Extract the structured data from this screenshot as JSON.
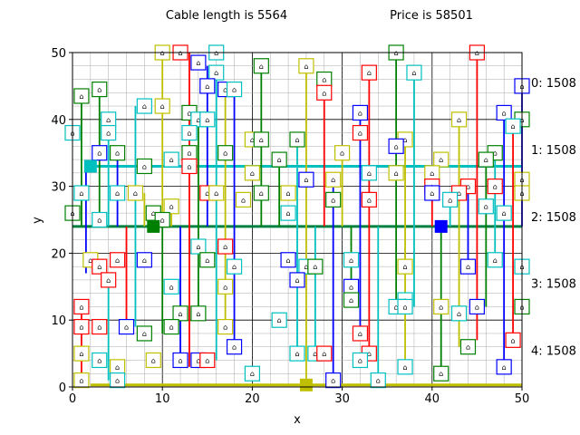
{
  "header": {
    "cable_text": "Cable length is 5564",
    "price_text": "Price is 58501"
  },
  "chart_data": {
    "type": "scatter",
    "xlabel": "x",
    "ylabel": "y",
    "xlim": [
      0,
      50
    ],
    "ylim": [
      0,
      50
    ],
    "x_ticks": [
      0,
      10,
      20,
      30,
      40,
      50
    ],
    "y_ticks": [
      0,
      10,
      20,
      30,
      40,
      50
    ],
    "grid": "major and minor",
    "house_glyph": "⌂",
    "side_labels": [
      {
        "text": "0: 1508",
        "y": 45.5
      },
      {
        "text": "1: 1508",
        "y": 35.5
      },
      {
        "text": "2: 1508",
        "y": 25.5
      },
      {
        "text": "3: 1508",
        "y": 15.5
      },
      {
        "text": "4: 1508",
        "y": 5.5
      }
    ],
    "colors": {
      "red": "#ff0000",
      "green": "#008000",
      "blue": "#0000ff",
      "cyan": "#00bfbf",
      "olive": "#bfbf00",
      "trunk": "#008040",
      "square_green": "#008000",
      "square_blue": "#0000ff",
      "square_cyan": "#00bfbf",
      "square_olive": "#bfbf00"
    },
    "trunks": [
      {
        "color": "cyan",
        "y": 33,
        "x1": 2,
        "x2": 50
      },
      {
        "color": "trunk",
        "y": 24,
        "x1": 0,
        "x2": 50
      },
      {
        "color": "olive",
        "y": 0.3,
        "x1": 2,
        "x2": 50
      }
    ],
    "feeders": [
      {
        "x": 1,
        "y1": 24,
        "y2": 43.5,
        "color": "green"
      },
      {
        "x": 1,
        "y1": 0,
        "y2": 12,
        "color": "red"
      },
      {
        "x": 1.5,
        "y1": 17,
        "y2": 33,
        "color": "blue"
      },
      {
        "x": 3,
        "y1": 24,
        "y2": 45,
        "color": "green"
      },
      {
        "x": 4,
        "y1": 24,
        "y2": 40,
        "color": "cyan"
      },
      {
        "x": 4,
        "y1": 1,
        "y2": 16,
        "color": "cyan"
      },
      {
        "x": 5,
        "y1": 24,
        "y2": 35,
        "color": "blue"
      },
      {
        "x": 6,
        "y1": 8,
        "y2": 24,
        "color": "red"
      },
      {
        "x": 7,
        "y1": 9,
        "y2": 42,
        "color": "cyan"
      },
      {
        "x": 8,
        "y1": 24,
        "y2": 29,
        "color": "olive"
      },
      {
        "x": 10,
        "y1": 24,
        "y2": 50,
        "color": "olive"
      },
      {
        "x": 10,
        "y1": 8,
        "y2": 24,
        "color": "green"
      },
      {
        "x": 11,
        "y1": 24,
        "y2": 27,
        "color": "olive"
      },
      {
        "x": 12,
        "y1": 4,
        "y2": 24,
        "color": "blue"
      },
      {
        "x": 13,
        "y1": 3,
        "y2": 50,
        "color": "red"
      },
      {
        "x": 14,
        "y1": 11,
        "y2": 41,
        "color": "green"
      },
      {
        "x": 15,
        "y1": 24,
        "y2": 48,
        "color": "blue"
      },
      {
        "x": 16,
        "y1": 4,
        "y2": 47,
        "color": "cyan"
      },
      {
        "x": 17,
        "y1": 9,
        "y2": 45,
        "color": "olive"
      },
      {
        "x": 18,
        "y1": 6,
        "y2": 44,
        "color": "blue"
      },
      {
        "x": 21,
        "y1": 24,
        "y2": 48,
        "color": "green"
      },
      {
        "x": 23,
        "y1": 24,
        "y2": 34,
        "color": "green"
      },
      {
        "x": 25,
        "y1": 5,
        "y2": 37,
        "color": "cyan"
      },
      {
        "x": 26,
        "y1": 0,
        "y2": 48,
        "color": "olive"
      },
      {
        "x": 27,
        "y1": 5,
        "y2": 24,
        "color": "cyan"
      },
      {
        "x": 28,
        "y1": 24,
        "y2": 44,
        "color": "red"
      },
      {
        "x": 29,
        "y1": 1,
        "y2": 30,
        "color": "blue"
      },
      {
        "x": 30,
        "y1": 24,
        "y2": 35,
        "color": "olive"
      },
      {
        "x": 31,
        "y1": 13,
        "y2": 24,
        "color": "green"
      },
      {
        "x": 32,
        "y1": 8,
        "y2": 41,
        "color": "blue"
      },
      {
        "x": 33,
        "y1": 4,
        "y2": 47,
        "color": "red"
      },
      {
        "x": 34,
        "y1": 1,
        "y2": 24,
        "color": "cyan"
      },
      {
        "x": 36,
        "y1": 12,
        "y2": 50,
        "color": "green"
      },
      {
        "x": 37,
        "y1": 3,
        "y2": 37,
        "color": "olive"
      },
      {
        "x": 38,
        "y1": 12,
        "y2": 47,
        "color": "cyan"
      },
      {
        "x": 40,
        "y1": 24,
        "y2": 30,
        "color": "red"
      },
      {
        "x": 41,
        "y1": 2,
        "y2": 24,
        "color": "green"
      },
      {
        "x": 42,
        "y1": 24,
        "y2": 28,
        "color": "cyan"
      },
      {
        "x": 43,
        "y1": 6,
        "y2": 40,
        "color": "olive"
      },
      {
        "x": 44,
        "y1": 18,
        "y2": 30,
        "color": "blue"
      },
      {
        "x": 45,
        "y1": 7,
        "y2": 50,
        "color": "red"
      },
      {
        "x": 46,
        "y1": 12,
        "y2": 34,
        "color": "green"
      },
      {
        "x": 47,
        "y1": 19,
        "y2": 35,
        "color": "cyan"
      },
      {
        "x": 48,
        "y1": 3,
        "y2": 41,
        "color": "blue"
      },
      {
        "x": 49,
        "y1": 7,
        "y2": 39,
        "color": "red"
      },
      {
        "x": 50,
        "y1": 24,
        "y2": 45,
        "color": "blue"
      }
    ],
    "substations": [
      {
        "x": 2,
        "y": 33,
        "color": "square_cyan"
      },
      {
        "x": 9,
        "y": 24,
        "color": "square_green"
      },
      {
        "x": 41,
        "y": 24,
        "color": "square_blue"
      },
      {
        "x": 26,
        "y": 0.3,
        "color": "square_olive"
      }
    ],
    "houses": [
      {
        "x": 10,
        "y": 50,
        "color": "olive"
      },
      {
        "x": 12,
        "y": 50,
        "color": "red"
      },
      {
        "x": 16,
        "y": 50,
        "color": "cyan"
      },
      {
        "x": 36,
        "y": 50,
        "color": "green"
      },
      {
        "x": 45,
        "y": 50,
        "color": "red"
      },
      {
        "x": 14,
        "y": 48.5,
        "color": "blue"
      },
      {
        "x": 21,
        "y": 48,
        "color": "green"
      },
      {
        "x": 26,
        "y": 48,
        "color": "olive"
      },
      {
        "x": 16,
        "y": 47,
        "color": "cyan"
      },
      {
        "x": 33,
        "y": 47,
        "color": "red"
      },
      {
        "x": 38,
        "y": 47,
        "color": "cyan"
      },
      {
        "x": 15,
        "y": 45,
        "color": "blue"
      },
      {
        "x": 28,
        "y": 46,
        "color": "green"
      },
      {
        "x": 50,
        "y": 45,
        "color": "blue"
      },
      {
        "x": 3,
        "y": 44.5,
        "color": "green"
      },
      {
        "x": 17,
        "y": 44.5,
        "color": "blue"
      },
      {
        "x": 18,
        "y": 44.5,
        "color": "cyan"
      },
      {
        "x": 28,
        "y": 44,
        "color": "red"
      },
      {
        "x": 1,
        "y": 43.5,
        "color": "green"
      },
      {
        "x": 8,
        "y": 42,
        "color": "cyan"
      },
      {
        "x": 10,
        "y": 42,
        "color": "olive"
      },
      {
        "x": 13,
        "y": 41,
        "color": "green"
      },
      {
        "x": 32,
        "y": 41,
        "color": "blue"
      },
      {
        "x": 48,
        "y": 41,
        "color": "blue"
      },
      {
        "x": 4,
        "y": 40,
        "color": "cyan"
      },
      {
        "x": 14,
        "y": 40,
        "color": "cyan"
      },
      {
        "x": 15,
        "y": 40,
        "color": "cyan"
      },
      {
        "x": 43,
        "y": 40,
        "color": "olive"
      },
      {
        "x": 50,
        "y": 40,
        "color": "green"
      },
      {
        "x": 49,
        "y": 39,
        "color": "cyan"
      },
      {
        "x": 0,
        "y": 38,
        "color": "cyan"
      },
      {
        "x": 4,
        "y": 38,
        "color": "cyan"
      },
      {
        "x": 13,
        "y": 38,
        "color": "cyan"
      },
      {
        "x": 32,
        "y": 38,
        "color": "red"
      },
      {
        "x": 20,
        "y": 37,
        "color": "olive"
      },
      {
        "x": 21,
        "y": 37,
        "color": "green"
      },
      {
        "x": 25,
        "y": 37,
        "color": "green"
      },
      {
        "x": 37,
        "y": 37,
        "color": "olive"
      },
      {
        "x": 36,
        "y": 36,
        "color": "blue"
      },
      {
        "x": 3,
        "y": 35,
        "color": "blue"
      },
      {
        "x": 5,
        "y": 35,
        "color": "green"
      },
      {
        "x": 13,
        "y": 35,
        "color": "green"
      },
      {
        "x": 17,
        "y": 35,
        "color": "green"
      },
      {
        "x": 30,
        "y": 35,
        "color": "olive"
      },
      {
        "x": 47,
        "y": 35,
        "color": "green"
      },
      {
        "x": 11,
        "y": 34,
        "color": "cyan"
      },
      {
        "x": 23,
        "y": 34,
        "color": "green"
      },
      {
        "x": 41,
        "y": 34,
        "color": "olive"
      },
      {
        "x": 46,
        "y": 34,
        "color": "green"
      },
      {
        "x": 8,
        "y": 33,
        "color": "green"
      },
      {
        "x": 13,
        "y": 33,
        "color": "red"
      },
      {
        "x": 20,
        "y": 32,
        "color": "olive"
      },
      {
        "x": 33,
        "y": 32,
        "color": "cyan"
      },
      {
        "x": 36,
        "y": 32,
        "color": "olive"
      },
      {
        "x": 40,
        "y": 32,
        "color": "olive"
      },
      {
        "x": 26,
        "y": 31,
        "color": "blue"
      },
      {
        "x": 29,
        "y": 31,
        "color": "olive"
      },
      {
        "x": 50,
        "y": 31,
        "color": "olive"
      },
      {
        "x": 40,
        "y": 30,
        "color": "red"
      },
      {
        "x": 44,
        "y": 30,
        "color": "red"
      },
      {
        "x": 47,
        "y": 30,
        "color": "red"
      },
      {
        "x": 1,
        "y": 29,
        "color": "cyan"
      },
      {
        "x": 5,
        "y": 29,
        "color": "cyan"
      },
      {
        "x": 7,
        "y": 29,
        "color": "olive"
      },
      {
        "x": 15,
        "y": 29,
        "color": "red"
      },
      {
        "x": 16,
        "y": 29,
        "color": "olive"
      },
      {
        "x": 21,
        "y": 29,
        "color": "green"
      },
      {
        "x": 24,
        "y": 29,
        "color": "olive"
      },
      {
        "x": 40,
        "y": 29,
        "color": "blue"
      },
      {
        "x": 43,
        "y": 29,
        "color": "red"
      },
      {
        "x": 50,
        "y": 29,
        "color": "olive"
      },
      {
        "x": 19,
        "y": 28,
        "color": "olive"
      },
      {
        "x": 29,
        "y": 28,
        "color": "green"
      },
      {
        "x": 33,
        "y": 28,
        "color": "red"
      },
      {
        "x": 42,
        "y": 28,
        "color": "cyan"
      },
      {
        "x": 11,
        "y": 27,
        "color": "olive"
      },
      {
        "x": 46,
        "y": 27,
        "color": "cyan"
      },
      {
        "x": 0,
        "y": 26,
        "color": "green"
      },
      {
        "x": 9,
        "y": 26,
        "color": "green"
      },
      {
        "x": 24,
        "y": 26,
        "color": "cyan"
      },
      {
        "x": 48,
        "y": 26,
        "color": "cyan"
      },
      {
        "x": 3,
        "y": 25,
        "color": "cyan"
      },
      {
        "x": 10,
        "y": 25,
        "color": "green"
      },
      {
        "x": 14,
        "y": 21,
        "color": "cyan"
      },
      {
        "x": 17,
        "y": 21,
        "color": "red"
      },
      {
        "x": 2,
        "y": 19,
        "color": "olive"
      },
      {
        "x": 5,
        "y": 19,
        "color": "red"
      },
      {
        "x": 8,
        "y": 19,
        "color": "blue"
      },
      {
        "x": 15,
        "y": 19,
        "color": "green"
      },
      {
        "x": 24,
        "y": 19,
        "color": "blue"
      },
      {
        "x": 31,
        "y": 19,
        "color": "cyan"
      },
      {
        "x": 3,
        "y": 18,
        "color": "red"
      },
      {
        "x": 18,
        "y": 18,
        "color": "cyan"
      },
      {
        "x": 26,
        "y": 18,
        "color": "cyan"
      },
      {
        "x": 27,
        "y": 18,
        "color": "green"
      },
      {
        "x": 37,
        "y": 18,
        "color": "olive"
      },
      {
        "x": 44,
        "y": 18,
        "color": "blue"
      },
      {
        "x": 47,
        "y": 19,
        "color": "cyan"
      },
      {
        "x": 50,
        "y": 18,
        "color": "cyan"
      },
      {
        "x": 4,
        "y": 16,
        "color": "red"
      },
      {
        "x": 25,
        "y": 16,
        "color": "blue"
      },
      {
        "x": 11,
        "y": 15,
        "color": "cyan"
      },
      {
        "x": 17,
        "y": 15,
        "color": "olive"
      },
      {
        "x": 31,
        "y": 15,
        "color": "blue"
      },
      {
        "x": 31,
        "y": 13,
        "color": "green"
      },
      {
        "x": 37,
        "y": 13,
        "color": "cyan"
      },
      {
        "x": 1,
        "y": 12,
        "color": "red"
      },
      {
        "x": 36,
        "y": 12,
        "color": "cyan"
      },
      {
        "x": 37,
        "y": 12,
        "color": "cyan"
      },
      {
        "x": 41,
        "y": 12,
        "color": "olive"
      },
      {
        "x": 45,
        "y": 12,
        "color": "blue"
      },
      {
        "x": 50,
        "y": 12,
        "color": "green"
      },
      {
        "x": 12,
        "y": 11,
        "color": "green"
      },
      {
        "x": 14,
        "y": 11,
        "color": "green"
      },
      {
        "x": 43,
        "y": 11,
        "color": "cyan"
      },
      {
        "x": 23,
        "y": 10,
        "color": "cyan"
      },
      {
        "x": 1,
        "y": 9,
        "color": "red"
      },
      {
        "x": 3,
        "y": 9,
        "color": "red"
      },
      {
        "x": 6,
        "y": 9,
        "color": "blue"
      },
      {
        "x": 11,
        "y": 9,
        "color": "green"
      },
      {
        "x": 17,
        "y": 9,
        "color": "olive"
      },
      {
        "x": 8,
        "y": 8,
        "color": "green"
      },
      {
        "x": 32,
        "y": 8,
        "color": "red"
      },
      {
        "x": 49,
        "y": 7,
        "color": "red"
      },
      {
        "x": 18,
        "y": 6,
        "color": "blue"
      },
      {
        "x": 44,
        "y": 6,
        "color": "green"
      },
      {
        "x": 1,
        "y": 5,
        "color": "olive"
      },
      {
        "x": 25,
        "y": 5,
        "color": "cyan"
      },
      {
        "x": 27,
        "y": 5,
        "color": "cyan"
      },
      {
        "x": 28,
        "y": 5,
        "color": "red"
      },
      {
        "x": 33,
        "y": 5,
        "color": "red"
      },
      {
        "x": 3,
        "y": 4,
        "color": "cyan"
      },
      {
        "x": 9,
        "y": 4,
        "color": "olive"
      },
      {
        "x": 12,
        "y": 4,
        "color": "blue"
      },
      {
        "x": 14,
        "y": 4,
        "color": "blue"
      },
      {
        "x": 15,
        "y": 4,
        "color": "red"
      },
      {
        "x": 32,
        "y": 4,
        "color": "cyan"
      },
      {
        "x": 5,
        "y": 3,
        "color": "olive"
      },
      {
        "x": 37,
        "y": 3,
        "color": "cyan"
      },
      {
        "x": 48,
        "y": 3,
        "color": "blue"
      },
      {
        "x": 20,
        "y": 2,
        "color": "cyan"
      },
      {
        "x": 41,
        "y": 2,
        "color": "green"
      },
      {
        "x": 1,
        "y": 1,
        "color": "olive"
      },
      {
        "x": 5,
        "y": 1,
        "color": "cyan"
      },
      {
        "x": 29,
        "y": 1,
        "color": "blue"
      },
      {
        "x": 34,
        "y": 1,
        "color": "cyan"
      }
    ]
  }
}
